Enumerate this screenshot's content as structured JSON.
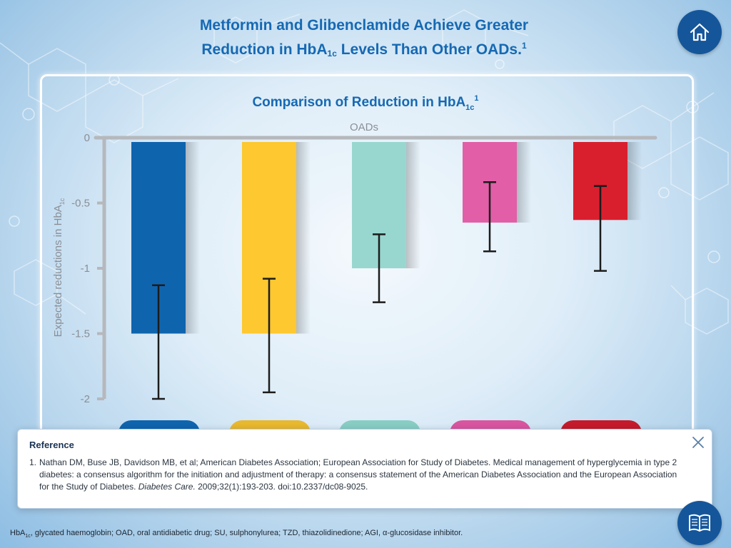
{
  "header": {
    "title_line1": "Metformin and Glibenclamide Achieve Greater",
    "title_line2_pre": "Reduction in HbA",
    "title_line2_sub": "1c",
    "title_line2_post": " Levels Than Other OADs.",
    "title_sup": "1",
    "home_icon": "home-icon"
  },
  "chart_data": {
    "type": "bar",
    "title_pre": "Comparison of Reduction in HbA",
    "title_sub": "1c",
    "title_sup": "1",
    "xlabel": "OADs",
    "ylabel_pre": "Expected reductions in HbA",
    "ylabel_sub": "1c",
    "ylim": [
      -2,
      0
    ],
    "yticks": [
      0,
      -0.5,
      -1,
      -1.5,
      -2
    ],
    "ytick_labels": [
      "0",
      "-0.5",
      "-1",
      "-1.5",
      "-2"
    ],
    "values": [
      -1.5,
      -1.5,
      -1.0,
      -0.65,
      -0.63
    ],
    "error_high": [
      -1.13,
      -1.08,
      -0.74,
      -0.34,
      -0.37
    ],
    "error_low": [
      -2.0,
      -1.95,
      -1.26,
      -0.87,
      -1.02
    ],
    "colors": [
      "#0f64ae",
      "#fdc830",
      "#98d7cf",
      "#e25ea7",
      "#d91f2e"
    ],
    "grid": false
  },
  "tabs": {
    "colors": [
      "#0f64ae",
      "#e8b82e",
      "#88cdc4",
      "#d955a0",
      "#c51a2b"
    ]
  },
  "reference_popup": {
    "heading": "Reference",
    "number": "1.",
    "text_main": "Nathan DM, Buse JB, Davidson MB, et al; American Diabetes Association; European Association for Study of Diabetes. Medical management of hyperglycemia in type 2 diabetes: a consensus algorithm for the initiation and adjustment of therapy: a consensus statement of the American Diabetes Association and the European Association for the Study of Diabetes. ",
    "journal": "Diabetes Care.",
    "citation": " 2009;32(1):193-203. doi:10.2337/dc08-9025.",
    "close_icon": "close-icon"
  },
  "footnote": {
    "pre": "HbA",
    "sub": "1c",
    "post": ", glycated haemoglobin; OAD, oral antidiabetic drug; SU, sulphonylurea; TZD, thiazolidinedione; AGI, α-glucosidase inhibitor."
  },
  "references_button": {
    "icon": "book-icon"
  }
}
